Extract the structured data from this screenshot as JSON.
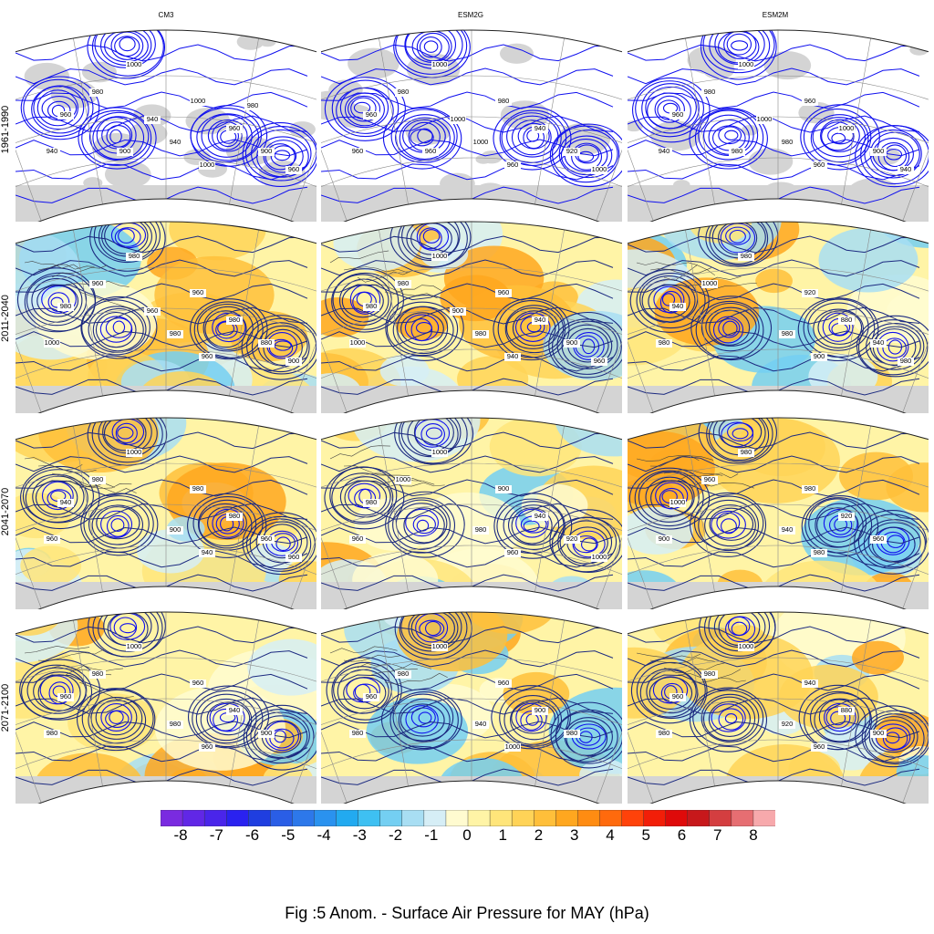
{
  "caption": "Fig :5  Anom.  - Surface Air Pressure for MAY (hPa)",
  "columns": [
    "CM3",
    "ESM2G",
    "ESM2M"
  ],
  "rows": [
    "1961-1990",
    "2011-2040",
    "2041-2070",
    "2071-2100"
  ],
  "panels": [
    {
      "row": 0,
      "col": 0,
      "mode": "climatology",
      "labels": [
        "1000",
        "980",
        "960",
        "940",
        "1000",
        "940",
        "960",
        "900",
        "1000",
        "960",
        "940",
        "900",
        "980"
      ]
    },
    {
      "row": 0,
      "col": 1,
      "mode": "climatology",
      "labels": [
        "1000",
        "980",
        "960",
        "960",
        "980",
        "1000",
        "940",
        "920",
        "960",
        "1000",
        "1000",
        "960"
      ]
    },
    {
      "row": 0,
      "col": 2,
      "mode": "climatology",
      "labels": [
        "1000",
        "980",
        "960",
        "940",
        "960",
        "980",
        "1000",
        "900",
        "960",
        "940",
        "1000",
        "980"
      ]
    },
    {
      "row": 1,
      "col": 0,
      "mode": "anomaly",
      "labels": [
        "980",
        "960",
        "980",
        "1000",
        "960",
        "980",
        "980",
        "880",
        "960",
        "900",
        "960"
      ]
    },
    {
      "row": 1,
      "col": 1,
      "mode": "anomaly",
      "labels": [
        "1000",
        "980",
        "980",
        "1000",
        "960",
        "980",
        "940",
        "900",
        "940",
        "960",
        "900"
      ]
    },
    {
      "row": 1,
      "col": 2,
      "mode": "anomaly",
      "labels": [
        "980",
        "1000",
        "940",
        "980",
        "920",
        "980",
        "880",
        "940",
        "900",
        "980"
      ]
    },
    {
      "row": 2,
      "col": 0,
      "mode": "anomaly",
      "labels": [
        "1000",
        "980",
        "940",
        "960",
        "980",
        "900",
        "980",
        "960",
        "940",
        "960"
      ]
    },
    {
      "row": 2,
      "col": 1,
      "mode": "anomaly",
      "labels": [
        "1000",
        "1000",
        "980",
        "960",
        "900",
        "980",
        "940",
        "920",
        "960",
        "1000"
      ]
    },
    {
      "row": 2,
      "col": 2,
      "mode": "anomaly",
      "labels": [
        "980",
        "960",
        "1000",
        "900",
        "980",
        "940",
        "920",
        "960",
        "980"
      ]
    },
    {
      "row": 3,
      "col": 0,
      "mode": "anomaly",
      "labels": [
        "1000",
        "980",
        "960",
        "980",
        "960",
        "980",
        "940",
        "900",
        "960"
      ]
    },
    {
      "row": 3,
      "col": 1,
      "mode": "anomaly",
      "labels": [
        "1000",
        "980",
        "960",
        "980",
        "960",
        "940",
        "900",
        "980",
        "1000"
      ]
    },
    {
      "row": 3,
      "col": 2,
      "mode": "anomaly",
      "labels": [
        "1000",
        "980",
        "960",
        "980",
        "940",
        "920",
        "880",
        "900",
        "960"
      ]
    }
  ],
  "colorbar": {
    "labels": [
      "-8",
      "-7",
      "-6",
      "-5",
      "-4",
      "-3",
      "-2",
      "-1",
      "0",
      "1",
      "2",
      "3",
      "4",
      "5",
      "6",
      "7",
      "8"
    ],
    "colors": [
      "#7a2be0",
      "#6127e6",
      "#4a25ea",
      "#2a22f0",
      "#1f3ee0",
      "#2a5ee6",
      "#2d78ea",
      "#2a92ef",
      "#22aaf0",
      "#3ec0f2",
      "#74cff2",
      "#a8def3",
      "#d6eef6",
      "#fffbd0",
      "#fff4a6",
      "#ffe57a",
      "#ffd357",
      "#ffbf3a",
      "#ffa71f",
      "#ff8c12",
      "#ff6a0d",
      "#ff420a",
      "#f21e08",
      "#df0a0a",
      "#c7181b",
      "#d43e40",
      "#e66e72",
      "#f7a9ac"
    ]
  },
  "colors": {
    "land_mask": "#d4d4d4",
    "contour": "#1010ee",
    "contour_dark": "#1c2a80",
    "coast": "#444444",
    "graticule": "#8a8a8a"
  }
}
